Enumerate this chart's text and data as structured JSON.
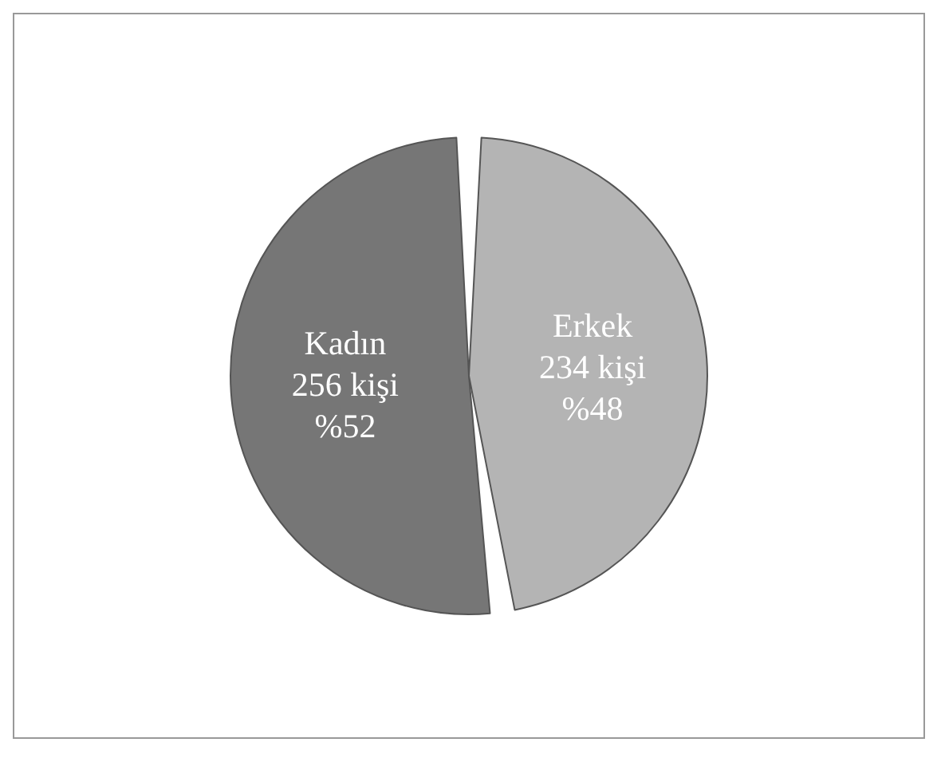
{
  "chart_data": {
    "type": "pie",
    "categories": [
      "Kadın",
      "Erkek"
    ],
    "values": [
      256,
      234
    ],
    "colors": [
      "#767676",
      "#b4b4b4"
    ],
    "value_labels": [
      "256 kişi\n%52",
      "234 kişi\n%48"
    ],
    "legend": false
  }
}
